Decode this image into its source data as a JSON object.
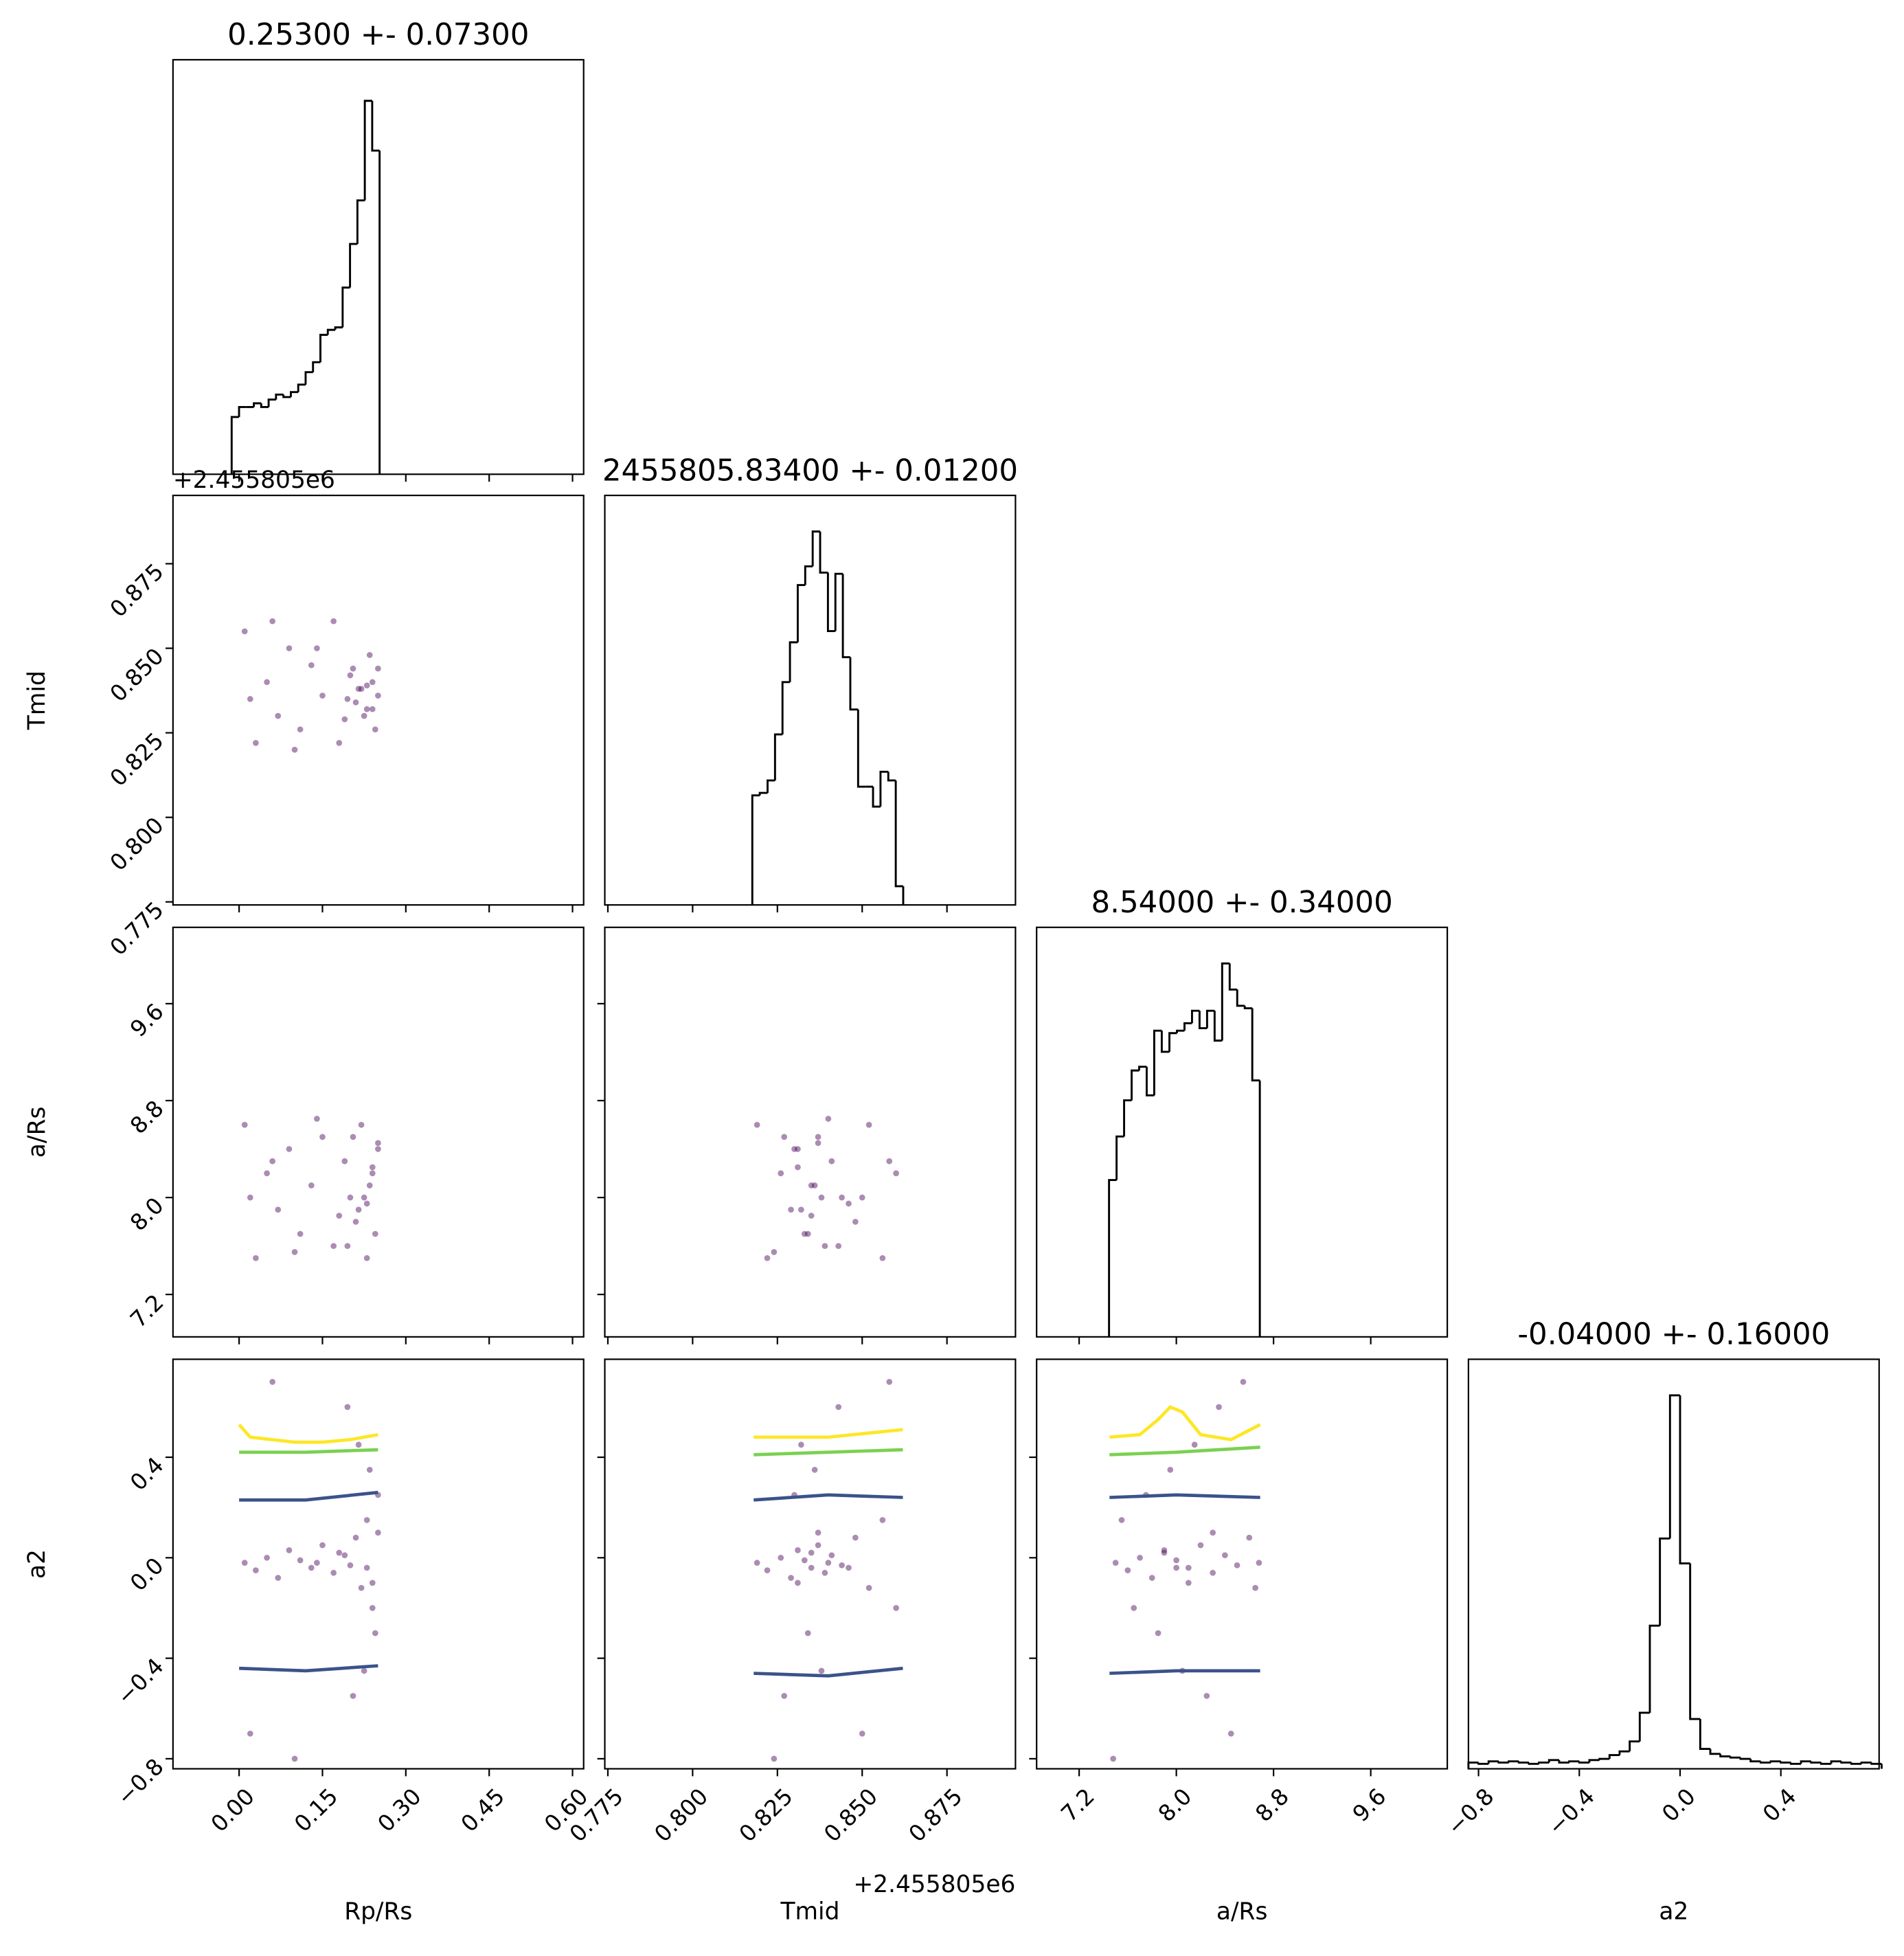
{
  "chart_data": [
    {
      "type": "histogram",
      "title": "0.25300 +- 0.07300",
      "color": "#000000",
      "bins": [
        -0.0134,
        -0.0001,
        0.0132,
        0.0265,
        0.0398,
        0.0531,
        0.0664,
        0.0798,
        0.0931,
        0.1064,
        0.1197,
        0.133,
        0.1463,
        0.1596,
        0.173,
        0.1863,
        0.1996,
        0.2129,
        0.2262,
        0.2395,
        0.2528
      ],
      "values": [
        46,
        54,
        54,
        57,
        54,
        60,
        64,
        62,
        66,
        72,
        82,
        90,
        112,
        116,
        118,
        150,
        185,
        220,
        300,
        260
      ],
      "xlim": [
        -0.119,
        0.62
      ],
      "ylim": [
        0,
        333
      ],
      "xticks": [
        0,
        0.15,
        0.3,
        0.45,
        0.6
      ]
    },
    {
      "type": "scatter",
      "y_label": "Tmid",
      "offset_text": "+2.455805e6",
      "color": "#440154",
      "x": [
        0.01,
        0.03,
        0.05,
        0.07,
        0.09,
        0.11,
        0.13,
        0.15,
        0.17,
        0.19,
        0.2,
        0.21,
        0.22,
        0.23,
        0.24,
        0.25,
        0.245,
        0.235,
        0.225,
        0.215,
        0.205,
        0.195,
        0.02,
        0.06,
        0.1,
        0.14,
        0.18,
        0.24,
        0.25,
        0.23
      ],
      "y": [
        0.855,
        0.822,
        0.84,
        0.83,
        0.85,
        0.826,
        0.845,
        0.836,
        0.858,
        0.829,
        0.842,
        0.834,
        0.838,
        0.832,
        0.84,
        0.836,
        0.826,
        0.848,
        0.83,
        0.838,
        0.844,
        0.835,
        0.835,
        0.858,
        0.82,
        0.85,
        0.822,
        0.832,
        0.844,
        0.839
      ],
      "xlim": [
        -0.119,
        0.62
      ],
      "ylim": [
        0.7741,
        0.8952
      ],
      "xticks": [
        0,
        0.15,
        0.3,
        0.45,
        0.6
      ],
      "yticks": [
        0.775,
        {
          "value": 0.8,
          "label": "0.800"
        },
        0.825,
        {
          "value": 0.85,
          "label": "0.850"
        },
        0.875
      ]
    },
    {
      "type": "histogram",
      "title": "2455805.83400 +- 0.01200",
      "color": "#000000",
      "bins": [
        0.8176,
        0.8198,
        0.8221,
        0.8243,
        0.8265,
        0.8287,
        0.831,
        0.8332,
        0.8354,
        0.8376,
        0.8399,
        0.8421,
        0.8443,
        0.8465,
        0.8488,
        0.851,
        0.8532,
        0.8554,
        0.8577,
        0.8599,
        0.8621
      ],
      "values": [
        88,
        90,
        100,
        137,
        179,
        211,
        257,
        272,
        300,
        267,
        220,
        266,
        199,
        157,
        95,
        95,
        79,
        107,
        100,
        15
      ],
      "xlim": [
        0.7741,
        0.8952
      ],
      "ylim": [
        0,
        329
      ],
      "xticks": [
        0.775,
        0.8,
        0.825,
        0.85,
        0.875
      ]
    },
    {
      "type": "scatter",
      "y_label": "a/Rs",
      "color": "#440154",
      "x": [
        0.01,
        0.03,
        0.05,
        0.07,
        0.09,
        0.11,
        0.13,
        0.15,
        0.17,
        0.19,
        0.2,
        0.21,
        0.22,
        0.23,
        0.24,
        0.25,
        0.245,
        0.235,
        0.225,
        0.215,
        0.205,
        0.195,
        0.02,
        0.06,
        0.1,
        0.14,
        0.18,
        0.24,
        0.25,
        0.23
      ],
      "y": [
        8.6,
        7.5,
        8.2,
        7.9,
        8.4,
        7.7,
        8.1,
        8.5,
        7.6,
        8.3,
        8.0,
        7.8,
        8.6,
        7.5,
        8.2,
        8.4,
        7.7,
        8.1,
        8.0,
        7.9,
        8.5,
        7.6,
        8.0,
        8.3,
        7.55,
        8.65,
        7.85,
        8.25,
        8.45,
        7.95
      ],
      "xlim": [
        -0.119,
        0.62
      ],
      "ylim": [
        6.85,
        10.23
      ],
      "xticks": [
        0,
        0.15,
        0.3,
        0.45,
        0.6
      ],
      "yticks": [
        7.2,
        {
          "value": 8,
          "label": "8.0"
        },
        8.8,
        9.6
      ]
    },
    {
      "type": "scatter",
      "color": "#440154",
      "x": [
        0.819,
        0.822,
        0.826,
        0.829,
        0.831,
        0.833,
        0.835,
        0.837,
        0.839,
        0.841,
        0.844,
        0.848,
        0.852,
        0.856,
        0.86,
        0.83,
        0.834,
        0.836,
        0.838,
        0.832,
        0.827,
        0.843,
        0.85,
        0.858,
        0.824,
        0.84,
        0.835,
        0.831,
        0.837,
        0.846
      ],
      "y": [
        8.6,
        7.5,
        8.2,
        7.9,
        8.4,
        7.7,
        8.1,
        8.5,
        7.6,
        8.3,
        8.0,
        7.8,
        8.6,
        7.5,
        8.2,
        8.4,
        7.7,
        8.1,
        8.0,
        7.9,
        8.5,
        7.6,
        8.0,
        8.3,
        7.55,
        8.65,
        7.85,
        8.25,
        8.45,
        7.95
      ],
      "xlim": [
        0.7741,
        0.8952
      ],
      "ylim": [
        6.85,
        10.23
      ],
      "xticks": [
        0.775,
        0.8,
        0.825,
        0.85,
        0.875
      ],
      "yticks": [
        7.2,
        8,
        8.8,
        9.6
      ]
    },
    {
      "type": "histogram",
      "title": "8.54000 +- 0.34000",
      "color": "#000000",
      "bins": [
        7.446,
        7.508,
        7.57,
        7.632,
        7.694,
        7.756,
        7.818,
        7.88,
        7.943,
        8.005,
        8.067,
        8.129,
        8.191,
        8.253,
        8.315,
        8.377,
        8.439,
        8.501,
        8.563,
        8.625,
        8.687
      ],
      "values": [
        126,
        161,
        190,
        214,
        217,
        194,
        246,
        229,
        244,
        246,
        252,
        262,
        248,
        262,
        238,
        300,
        279,
        266,
        264,
        206
      ],
      "xlim": [
        6.85,
        10.23
      ],
      "ylim": [
        0,
        329
      ],
      "xticks": [
        7.2,
        8,
        8.8,
        9.6
      ]
    },
    {
      "type": "scatter",
      "x_label": "Rp/Rs",
      "y_label": "a2",
      "color": "#440154",
      "x": [
        0.01,
        0.03,
        0.05,
        0.07,
        0.09,
        0.11,
        0.13,
        0.15,
        0.17,
        0.19,
        0.2,
        0.21,
        0.22,
        0.23,
        0.24,
        0.25,
        0.245,
        0.235,
        0.225,
        0.215,
        0.205,
        0.195,
        0.02,
        0.06,
        0.1,
        0.14,
        0.18,
        0.24,
        0.25,
        0.23
      ],
      "y": [
        -0.02,
        -0.05,
        0.0,
        -0.08,
        0.03,
        -0.01,
        -0.04,
        0.05,
        -0.06,
        0.01,
        -0.03,
        0.08,
        -0.12,
        0.15,
        -0.2,
        0.25,
        -0.3,
        0.35,
        -0.45,
        0.45,
        -0.55,
        0.6,
        -0.7,
        0.7,
        -0.8,
        -0.02,
        0.02,
        -0.1,
        0.1,
        -0.04
      ],
      "lines": [
        {
          "color": "#fde725",
          "x": [
            0,
            0.02,
            0.06,
            0.1,
            0.15,
            0.2,
            0.25
          ],
          "y": [
            0.53,
            0.48,
            0.47,
            0.46,
            0.46,
            0.47,
            0.49
          ]
        },
        {
          "color": "#7ad151",
          "x": [
            0,
            0.12,
            0.25
          ],
          "y": [
            0.42,
            0.42,
            0.43
          ]
        },
        {
          "color": "#3b528b",
          "x": [
            0,
            0.12,
            0.25
          ],
          "y": [
            0.23,
            0.23,
            0.26
          ]
        },
        {
          "color": "#3b528b",
          "x": [
            0,
            0.12,
            0.25
          ],
          "y": [
            -0.44,
            -0.45,
            -0.43
          ]
        }
      ],
      "xlim": [
        -0.119,
        0.62
      ],
      "ylim": [
        -0.84,
        0.79
      ],
      "xticks": [
        {
          "value": 0,
          "label": "0.00"
        },
        {
          "value": 0.15,
          "label": "0.15"
        },
        {
          "value": 0.3,
          "label": "0.30"
        },
        {
          "value": 0.45,
          "label": "0.45"
        },
        {
          "value": 0.6,
          "label": "0.60"
        }
      ],
      "yticks": [
        {
          "value": -0.8,
          "label": "−0.8"
        },
        {
          "value": -0.4,
          "label": "−0.4"
        },
        {
          "value": 0,
          "label": "0.0"
        },
        0.4
      ]
    },
    {
      "type": "scatter",
      "x_label": "Tmid",
      "offset_text": "+2.455805e6",
      "color": "#440154",
      "x": [
        0.819,
        0.822,
        0.826,
        0.829,
        0.831,
        0.833,
        0.835,
        0.837,
        0.839,
        0.841,
        0.844,
        0.848,
        0.852,
        0.856,
        0.86,
        0.83,
        0.834,
        0.836,
        0.838,
        0.832,
        0.827,
        0.843,
        0.85,
        0.858,
        0.824,
        0.84,
        0.835,
        0.831,
        0.837,
        0.846
      ],
      "y": [
        -0.02,
        -0.05,
        0.0,
        -0.08,
        0.03,
        -0.01,
        -0.04,
        0.05,
        -0.06,
        0.01,
        -0.03,
        0.08,
        -0.12,
        0.15,
        -0.2,
        0.25,
        -0.3,
        0.35,
        -0.45,
        0.45,
        -0.55,
        0.6,
        -0.7,
        0.7,
        -0.8,
        -0.02,
        0.02,
        -0.1,
        0.1,
        -0.04
      ],
      "lines": [
        {
          "color": "#fde725",
          "x": [
            0.818,
            0.84,
            0.862
          ],
          "y": [
            0.48,
            0.48,
            0.51
          ]
        },
        {
          "color": "#7ad151",
          "x": [
            0.818,
            0.84,
            0.862
          ],
          "y": [
            0.41,
            0.42,
            0.43
          ]
        },
        {
          "color": "#3b528b",
          "x": [
            0.818,
            0.84,
            0.862
          ],
          "y": [
            0.23,
            0.25,
            0.24
          ]
        },
        {
          "color": "#3b528b",
          "x": [
            0.818,
            0.84,
            0.862
          ],
          "y": [
            -0.46,
            -0.47,
            -0.44
          ]
        }
      ],
      "xlim": [
        0.7741,
        0.8952
      ],
      "ylim": [
        -0.84,
        0.79
      ],
      "xticks": [
        0.775,
        {
          "value": 0.8,
          "label": "0.800"
        },
        0.825,
        {
          "value": 0.85,
          "label": "0.850"
        },
        0.875
      ],
      "yticks": [
        -0.8,
        -0.4,
        0,
        0.4
      ]
    },
    {
      "type": "scatter",
      "x_label": "a/Rs",
      "color": "#440154",
      "x": [
        7.5,
        7.6,
        7.7,
        7.8,
        7.9,
        8.0,
        8.1,
        8.2,
        8.3,
        8.4,
        8.5,
        8.6,
        8.65,
        7.55,
        7.65,
        7.75,
        7.85,
        7.95,
        8.05,
        8.15,
        8.25,
        8.35,
        8.45,
        8.55,
        7.48,
        8.68,
        7.9,
        8.1,
        8.3,
        8.0
      ],
      "y": [
        -0.02,
        -0.05,
        0.0,
        -0.08,
        0.03,
        -0.01,
        -0.04,
        0.05,
        -0.06,
        0.01,
        -0.03,
        0.08,
        -0.12,
        0.15,
        -0.2,
        0.25,
        -0.3,
        0.35,
        -0.45,
        0.45,
        -0.55,
        0.6,
        -0.7,
        0.7,
        -0.8,
        -0.02,
        0.02,
        -0.1,
        0.1,
        -0.04
      ],
      "lines": [
        {
          "color": "#fde725",
          "x": [
            7.45,
            7.7,
            7.85,
            7.95,
            8.05,
            8.2,
            8.45,
            8.69
          ],
          "y": [
            0.48,
            0.49,
            0.55,
            0.6,
            0.58,
            0.49,
            0.47,
            0.53
          ]
        },
        {
          "color": "#7ad151",
          "x": [
            7.45,
            8.0,
            8.69
          ],
          "y": [
            0.41,
            0.42,
            0.44
          ]
        },
        {
          "color": "#3b528b",
          "x": [
            7.45,
            8.0,
            8.69
          ],
          "y": [
            0.24,
            0.25,
            0.24
          ]
        },
        {
          "color": "#3b528b",
          "x": [
            7.45,
            8.0,
            8.69
          ],
          "y": [
            -0.46,
            -0.45,
            -0.45
          ]
        }
      ],
      "xlim": [
        6.85,
        10.23
      ],
      "ylim": [
        -0.84,
        0.79
      ],
      "xticks": [
        7.2,
        {
          "value": 8,
          "label": "8.0"
        },
        8.8,
        9.6
      ],
      "yticks": [
        -0.8,
        -0.4,
        0,
        0.4
      ]
    },
    {
      "type": "histogram",
      "title": "-0.04000 +- 0.16000",
      "x_label": "a2",
      "color": "#000000",
      "bins": [
        -0.84,
        -0.8,
        -0.76,
        -0.72,
        -0.68,
        -0.64,
        -0.6,
        -0.56,
        -0.52,
        -0.48,
        -0.44,
        -0.4,
        -0.36,
        -0.32,
        -0.28,
        -0.24,
        -0.2,
        -0.16,
        -0.12,
        -0.08,
        -0.04,
        0,
        0.04,
        0.08,
        0.12,
        0.16,
        0.2,
        0.24,
        0.28,
        0.32,
        0.36,
        0.4,
        0.44,
        0.48,
        0.52,
        0.56,
        0.6,
        0.64,
        0.68,
        0.72,
        0.76,
        0.8
      ],
      "values": [
        5,
        4,
        6,
        5,
        6,
        5,
        4,
        5,
        7,
        5,
        6,
        5,
        7,
        8,
        11,
        14,
        22,
        45,
        115,
        185,
        300,
        165,
        40,
        16,
        12,
        10,
        9,
        8,
        6,
        5,
        6,
        5,
        4,
        6,
        5,
        4,
        6,
        5,
        4,
        5,
        4
      ],
      "xlim": [
        -0.84,
        0.79
      ],
      "ylim": [
        0,
        329
      ],
      "xticks": [
        {
          "value": -0.8,
          "label": "−0.8"
        },
        {
          "value": -0.4,
          "label": "−0.4"
        },
        {
          "value": 0,
          "label": "0.0"
        },
        0.4
      ]
    }
  ]
}
